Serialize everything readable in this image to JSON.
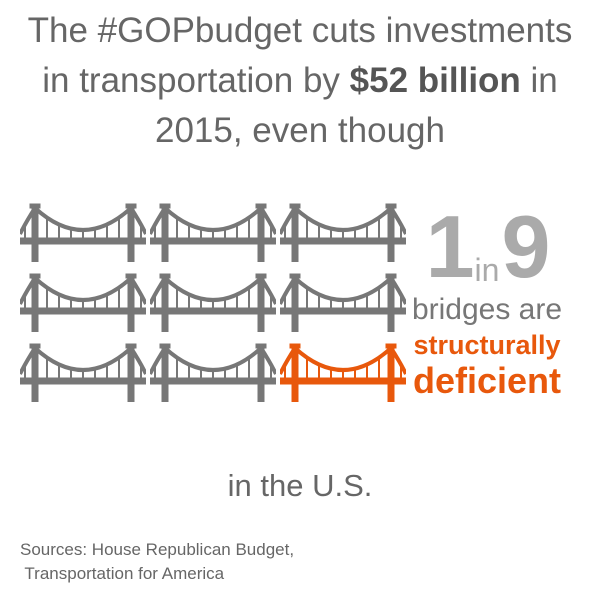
{
  "headline": {
    "line1": "The #GOPbudget cuts investments",
    "line2_before": "in transportation by ",
    "line2_amount": "$52 billion",
    "line2_after": " in",
    "line3": "2015, even though"
  },
  "stat": {
    "numerator": "1",
    "connector": "in",
    "denominator": "9",
    "line1": "bridges are",
    "line2": "structurally",
    "line3": "deficient"
  },
  "bridges": {
    "total": 9,
    "highlighted": 1,
    "gray_color": "#777777",
    "highlight_color": "#e8580c",
    "icon": "suspension-bridge-icon"
  },
  "footer": {
    "location": "in the U.S.",
    "sources_line1": "Sources: House Republican Budget,",
    "sources_line2": " Transportation for America"
  }
}
